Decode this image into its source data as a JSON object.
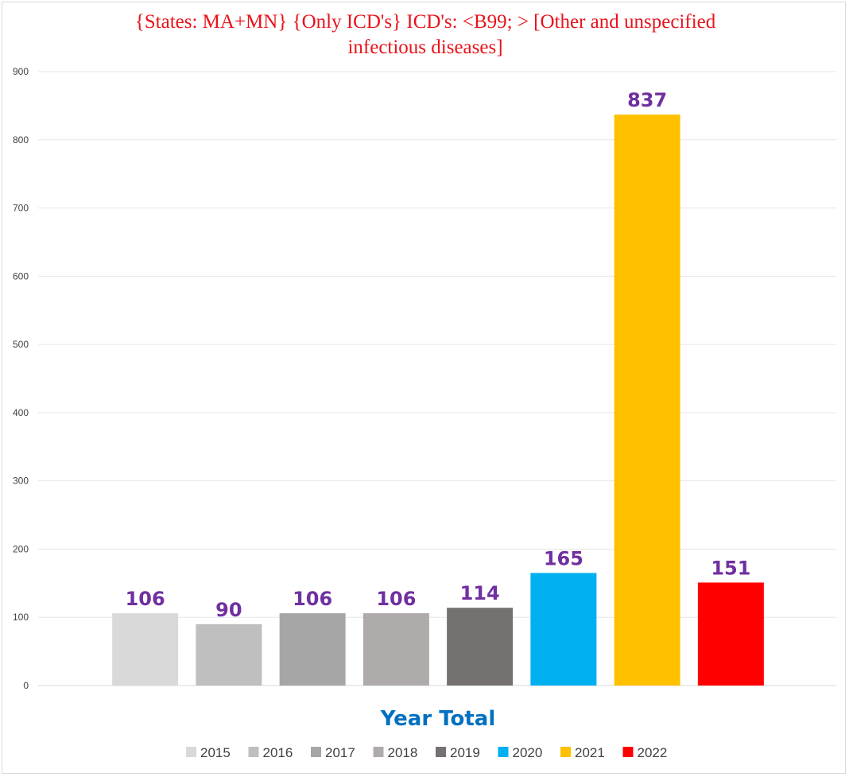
{
  "chart_data": {
    "type": "bar",
    "title": "{States: MA+MN}   {Only ICD's}  ICD's:  <B99; > [Other and unspecified infectious diseases]",
    "xlabel": "Year Total",
    "ylabel": "",
    "ylim": [
      0,
      900
    ],
    "yticks": [
      0,
      100,
      200,
      300,
      400,
      500,
      600,
      700,
      800,
      900
    ],
    "grid": true,
    "legend_position": "bottom",
    "series": [
      {
        "name": "2015",
        "values": [
          106
        ],
        "color": "#d9d9d9"
      },
      {
        "name": "2016",
        "values": [
          90
        ],
        "color": "#bfbfbf"
      },
      {
        "name": "2017",
        "values": [
          106
        ],
        "color": "#a6a6a6"
      },
      {
        "name": "2018",
        "values": [
          106
        ],
        "color": "#afabab"
      },
      {
        "name": "2019",
        "values": [
          114
        ],
        "color": "#767171"
      },
      {
        "name": "2020",
        "values": [
          165
        ],
        "color": "#00b0f0"
      },
      {
        "name": "2021",
        "values": [
          837
        ],
        "color": "#ffc000"
      },
      {
        "name": "2022",
        "values": [
          151
        ],
        "color": "#ff0000"
      }
    ]
  }
}
